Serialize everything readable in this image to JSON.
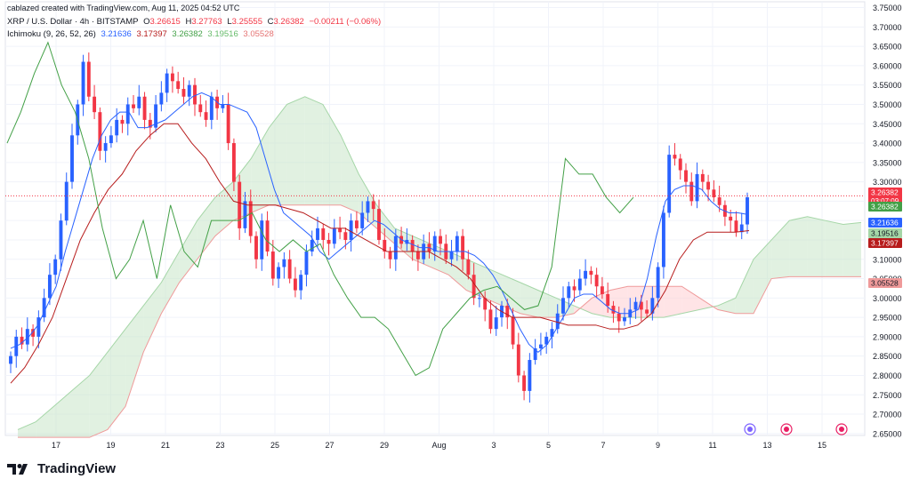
{
  "header": {
    "creator_line": "cablazed created with TradingView.com, Aug 11, 2025 04:52 UTC",
    "symbol": "XRP / U.S. Dollar · 4h · BITSTAMP",
    "ohlc": {
      "o_label": "O",
      "o": "3.26615",
      "h_label": "H",
      "h": "3.27763",
      "l_label": "L",
      "l": "3.25555",
      "c_label": "C",
      "c": "3.26382",
      "change": "−0.00211 (−0.06%)"
    },
    "indicator": {
      "name": "Ichimoku (9, 26, 52, 26)",
      "v1": "3.21636",
      "v2": "3.17397",
      "v3": "3.26382",
      "v4": "3.19516",
      "v5": "3.05528"
    }
  },
  "brand": {
    "name": "TradingView"
  },
  "colors": {
    "up": "#2962ff",
    "down": "#f23645",
    "conversion": "#2962ff",
    "base": "#b71c1c",
    "lagging": "#43a047",
    "span_a": "#a5d6a7",
    "span_b": "#ef9a9a",
    "cloud_green": "#c8e6c9",
    "cloud_red": "#ffcdd2",
    "grid": "#f0f3fa",
    "text": "#131722"
  },
  "chart_data": {
    "type": "candlestick",
    "title": "XRP / U.S. Dollar · 4h · BITSTAMP",
    "y_ticks": [
      "3.75000",
      "3.70000",
      "3.65000",
      "3.60000",
      "3.55000",
      "3.50000",
      "3.45000",
      "3.40000",
      "3.35000",
      "3.30000",
      "3.25000",
      "3.20000",
      "3.15000",
      "3.10000",
      "3.05000",
      "3.00000",
      "2.95000",
      "2.90000",
      "2.85000",
      "2.80000",
      "2.75000",
      "2.70000",
      "2.65000"
    ],
    "x_ticks": [
      "17",
      "19",
      "21",
      "23",
      "25",
      "27",
      "29",
      "Aug",
      "3",
      "5",
      "7",
      "9",
      "11",
      "13",
      "15"
    ],
    "ylim": [
      2.645,
      3.765
    ],
    "price_labels": [
      {
        "value": 3.26382,
        "text": "3.26382",
        "sub": "03:07:09",
        "color": "#f23645"
      },
      {
        "value": 3.26382,
        "text": "3.26382",
        "color": "#43a047"
      },
      {
        "value": 3.21636,
        "text": "3.21636",
        "color": "#2962ff"
      },
      {
        "value": 3.19516,
        "text": "3.19516",
        "color": "#a5d6a7"
      },
      {
        "value": 3.17397,
        "text": "3.17397",
        "color": "#b71c1c"
      },
      {
        "value": 3.05528,
        "text": "3.05528",
        "color": "#ef9a9a"
      }
    ],
    "current_price": 3.26382,
    "closes": [
      2.85,
      2.9,
      2.88,
      2.92,
      2.9,
      2.95,
      3.0,
      3.06,
      3.1,
      3.2,
      3.3,
      3.42,
      3.5,
      3.61,
      3.52,
      3.48,
      3.38,
      3.4,
      3.42,
      3.46,
      3.45,
      3.5,
      3.49,
      3.52,
      3.46,
      3.44,
      3.5,
      3.53,
      3.58,
      3.56,
      3.54,
      3.52,
      3.55,
      3.5,
      3.48,
      3.46,
      3.52,
      3.49,
      3.5,
      3.4,
      3.3,
      3.18,
      3.25,
      3.16,
      3.1,
      3.2,
      3.12,
      3.05,
      3.08,
      3.1,
      3.05,
      3.02,
      3.06,
      3.12,
      3.15,
      3.18,
      3.15,
      3.14,
      3.18,
      3.17,
      3.15,
      3.2,
      3.18,
      3.22,
      3.25,
      3.23,
      3.15,
      3.12,
      3.1,
      3.16,
      3.14,
      3.15,
      3.12,
      3.1,
      3.14,
      3.12,
      3.16,
      3.14,
      3.1,
      3.12,
      3.16,
      3.1,
      3.06,
      3.0,
      3.0,
      2.97,
      2.92,
      2.95,
      2.98,
      2.95,
      2.88,
      2.8,
      2.76,
      2.84,
      2.87,
      2.88,
      2.9,
      2.92,
      2.96,
      3.0,
      3.03,
      3.02,
      3.05,
      3.07,
      3.06,
      3.03,
      3.01,
      2.98,
      2.96,
      2.94,
      2.95,
      2.97,
      2.99,
      2.97,
      2.96,
      3.0,
      3.08,
      3.22,
      3.37,
      3.36,
      3.33,
      3.3,
      3.25,
      3.32,
      3.3,
      3.28,
      3.26,
      3.24,
      3.21,
      3.2,
      3.17,
      3.19,
      3.26
    ],
    "ichimoku": {
      "conversion": [
        2.87,
        2.88,
        2.9,
        2.93,
        2.98,
        3.03,
        3.12,
        3.2,
        3.28,
        3.36,
        3.42,
        3.46,
        3.48,
        3.48,
        3.44,
        3.44,
        3.45,
        3.46,
        3.48,
        3.5,
        3.52,
        3.53,
        3.52,
        3.5,
        3.5,
        3.49,
        3.48,
        3.44,
        3.36,
        3.28,
        3.22,
        3.2,
        3.18,
        3.16,
        3.12,
        3.1,
        3.12,
        3.14,
        3.16,
        3.18,
        3.2,
        3.19,
        3.17,
        3.15,
        3.14,
        3.13,
        3.13,
        3.12,
        3.12,
        3.12,
        3.12,
        3.11,
        3.09,
        3.06,
        3.02,
        2.97,
        2.92,
        2.88,
        2.86,
        2.88,
        2.92,
        2.96,
        3.0,
        3.01,
        3.01,
        2.99,
        2.97,
        2.96,
        2.96,
        2.97,
        3.05,
        3.16,
        3.25,
        3.28,
        3.29,
        3.29,
        3.28,
        3.25,
        3.23,
        3.22,
        3.22,
        3.216
      ],
      "base": [
        2.78,
        2.82,
        2.88,
        2.95,
        3.05,
        3.15,
        3.22,
        3.28,
        3.32,
        3.38,
        3.42,
        3.45,
        3.45,
        3.4,
        3.36,
        3.3,
        3.25,
        3.24,
        3.24,
        3.24,
        3.23,
        3.22,
        3.2,
        3.18,
        3.18,
        3.16,
        3.14,
        3.12,
        3.12,
        3.12,
        3.12,
        3.1,
        3.08,
        3.05,
        3.0,
        2.97,
        2.95,
        2.95,
        2.95,
        2.94,
        2.93,
        2.93,
        2.93,
        2.92,
        2.92,
        2.93,
        2.96,
        3.02,
        3.1,
        3.15,
        3.17,
        3.17,
        3.17,
        3.174
      ],
      "lagging": [
        3.4,
        3.48,
        3.58,
        3.66,
        3.55,
        3.48,
        3.36,
        3.18,
        3.05,
        3.1,
        3.2,
        3.05,
        3.24,
        3.12,
        3.08,
        3.2,
        3.2,
        3.2,
        3.22,
        3.15,
        3.12,
        3.15,
        3.12,
        3.14,
        3.06,
        3.0,
        2.95,
        2.95,
        2.92,
        2.86,
        2.8,
        2.82,
        2.92,
        2.96,
        3.0,
        3.02,
        3.03,
        3.0,
        2.97,
        2.98,
        3.08,
        3.36,
        3.32,
        3.32,
        3.26,
        3.22,
        3.26
      ],
      "span_a": [
        2.66,
        2.68,
        2.72,
        2.76,
        2.8,
        2.86,
        2.92,
        2.98,
        3.04,
        3.12,
        3.2,
        3.26,
        3.3,
        3.36,
        3.44,
        3.5,
        3.52,
        3.5,
        3.42,
        3.32,
        3.24,
        3.18,
        3.16,
        3.14,
        3.12,
        3.1,
        3.08,
        3.06,
        3.04,
        3.02,
        3.0,
        2.98,
        2.96,
        2.95,
        2.95,
        2.95,
        2.95,
        2.96,
        2.97,
        2.98,
        3.0,
        3.1,
        3.15,
        3.2,
        3.21,
        3.2,
        3.19,
        3.195
      ],
      "span_b": [
        2.64,
        2.64,
        2.64,
        2.64,
        2.64,
        2.66,
        2.72,
        2.86,
        2.96,
        3.04,
        3.1,
        3.16,
        3.2,
        3.22,
        3.24,
        3.24,
        3.24,
        3.24,
        3.24,
        3.22,
        3.18,
        3.14,
        3.1,
        3.08,
        3.06,
        3.02,
        3.0,
        2.98,
        2.96,
        2.95,
        2.95,
        2.96,
        3.0,
        3.02,
        3.03,
        3.03,
        3.03,
        3.03,
        3.0,
        2.97,
        2.96,
        2.96,
        3.05,
        3.055,
        3.055,
        3.055,
        3.055,
        3.055
      ]
    }
  }
}
